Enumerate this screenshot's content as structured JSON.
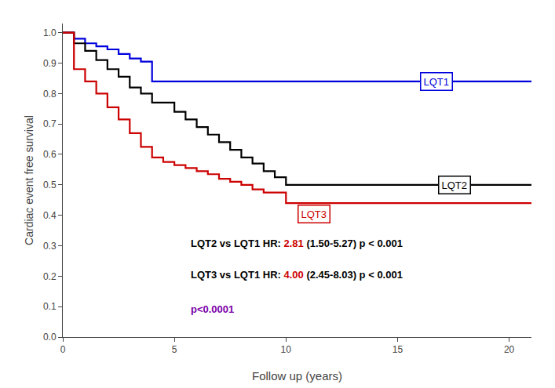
{
  "chart_data": {
    "type": "line",
    "line_style": "step",
    "xlabel": "Follow up (years)",
    "ylabel": "Cardiac event free survival",
    "xlim": [
      0,
      21
    ],
    "ylim": [
      0.0,
      1.03
    ],
    "xticks": [
      0,
      5,
      10,
      15,
      20
    ],
    "yticks": [
      {
        "value": 0.0,
        "label": "0.0"
      },
      0.1,
      0.2,
      0.3,
      0.4,
      0.5,
      0.6,
      0.7,
      0.8,
      0.9,
      {
        "value": 1.0,
        "label": "1.0"
      }
    ],
    "grid": false,
    "series": [
      {
        "name": "LQT1",
        "color": "#0000dd",
        "x": [
          0,
          0.5,
          1.0,
          1.5,
          2.0,
          2.5,
          3.0,
          3.5,
          4.0,
          21.0
        ],
        "values": [
          1.0,
          0.98,
          0.965,
          0.955,
          0.945,
          0.93,
          0.915,
          0.905,
          0.84,
          0.84
        ],
        "label": {
          "x": 16.0,
          "y": 0.84
        }
      },
      {
        "name": "LQT2",
        "color": "#000000",
        "x": [
          0,
          0.5,
          1.0,
          1.5,
          2.0,
          2.5,
          3.0,
          3.5,
          4.0,
          5.0,
          5.5,
          6.0,
          6.5,
          7.0,
          7.5,
          8.0,
          8.5,
          9.0,
          9.5,
          10.0,
          21.0
        ],
        "values": [
          1.0,
          0.965,
          0.94,
          0.91,
          0.88,
          0.855,
          0.82,
          0.8,
          0.77,
          0.74,
          0.715,
          0.69,
          0.665,
          0.64,
          0.615,
          0.59,
          0.57,
          0.545,
          0.525,
          0.5,
          0.5
        ],
        "label": {
          "x": 16.8,
          "y": 0.5
        }
      },
      {
        "name": "LQT3",
        "color": "#cc0000",
        "x": [
          0,
          0.5,
          1.0,
          1.5,
          2.0,
          2.5,
          3.0,
          3.5,
          4.0,
          4.5,
          5.0,
          5.5,
          6.0,
          6.5,
          7.0,
          7.5,
          8.0,
          8.5,
          9.0,
          10.0,
          21.0
        ],
        "values": [
          1.0,
          0.88,
          0.84,
          0.8,
          0.755,
          0.715,
          0.67,
          0.625,
          0.59,
          0.575,
          0.565,
          0.555,
          0.545,
          0.535,
          0.52,
          0.51,
          0.5,
          0.485,
          0.475,
          0.44,
          0.44
        ],
        "label": {
          "x": 10.5,
          "y": 0.405
        }
      }
    ],
    "annotations": [
      {
        "parts": [
          {
            "text": "LQT2 vs LQT1 HR:"
          },
          {
            "text": "2.81",
            "color": "#cc0000"
          },
          {
            "text": "(1.50-5.27) p < 0.001"
          }
        ]
      },
      {
        "parts": [
          {
            "text": "LQT3 vs LQT1 HR:"
          },
          {
            "text": "4.00",
            "color": "#cc0000"
          },
          {
            "text": "(2.45-8.03) p < 0.001"
          }
        ]
      },
      {
        "parts": [
          {
            "text": "p<0.0001",
            "color": "#7B00AA"
          }
        ]
      }
    ]
  }
}
